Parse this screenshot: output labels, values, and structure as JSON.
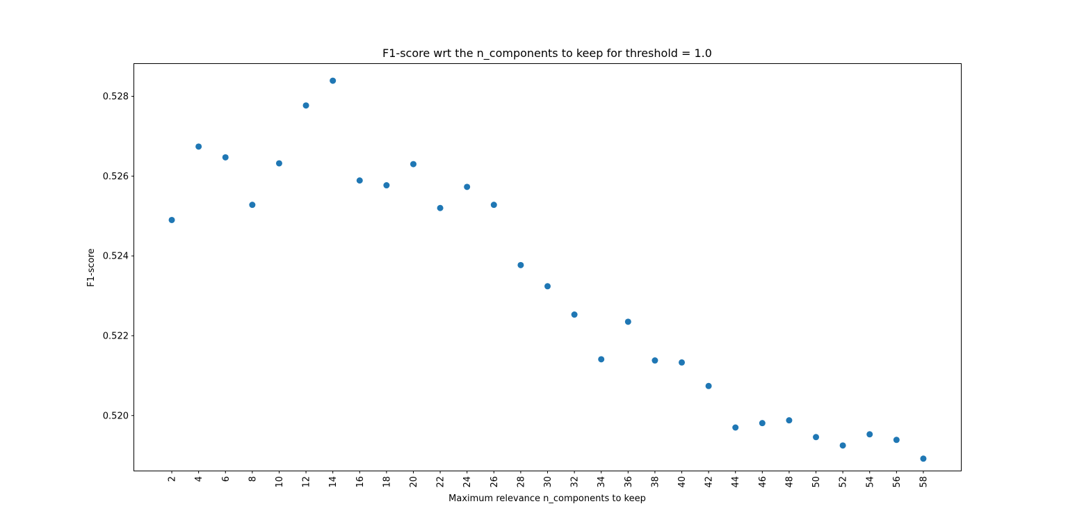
{
  "chart_data": {
    "type": "scatter",
    "title": "F1-score wrt the n_components to keep for threshold = 1.0",
    "xlabel": "Maximum relevance n_components to keep",
    "ylabel": "F1-score",
    "x": [
      2,
      4,
      6,
      8,
      10,
      12,
      14,
      16,
      18,
      20,
      22,
      24,
      26,
      28,
      30,
      32,
      34,
      36,
      38,
      40,
      42,
      44,
      46,
      48,
      50,
      52,
      54,
      56,
      58
    ],
    "y": [
      0.5249,
      0.52674,
      0.52647,
      0.52528,
      0.52632,
      0.52777,
      0.52839,
      0.52589,
      0.52577,
      0.5263,
      0.5252,
      0.52573,
      0.52528,
      0.52377,
      0.52324,
      0.52253,
      0.52141,
      0.52235,
      0.52138,
      0.52133,
      0.52074,
      0.5197,
      0.51981,
      0.51988,
      0.51946,
      0.51925,
      0.51953,
      0.51939,
      0.51892
    ],
    "xticks": [
      2,
      4,
      6,
      8,
      10,
      12,
      14,
      16,
      18,
      20,
      22,
      24,
      26,
      28,
      30,
      32,
      34,
      36,
      38,
      40,
      42,
      44,
      46,
      48,
      50,
      52,
      54,
      56,
      58
    ],
    "yticks": [
      0.52,
      0.522,
      0.524,
      0.526,
      0.528
    ],
    "ytick_labels": [
      "0.520",
      "0.522",
      "0.524",
      "0.526",
      "0.528"
    ],
    "xlim": [
      -0.8,
      60.8
    ],
    "ylim": [
      0.51862,
      0.52881
    ],
    "grid": false,
    "marker_color": "#1f77b4"
  }
}
